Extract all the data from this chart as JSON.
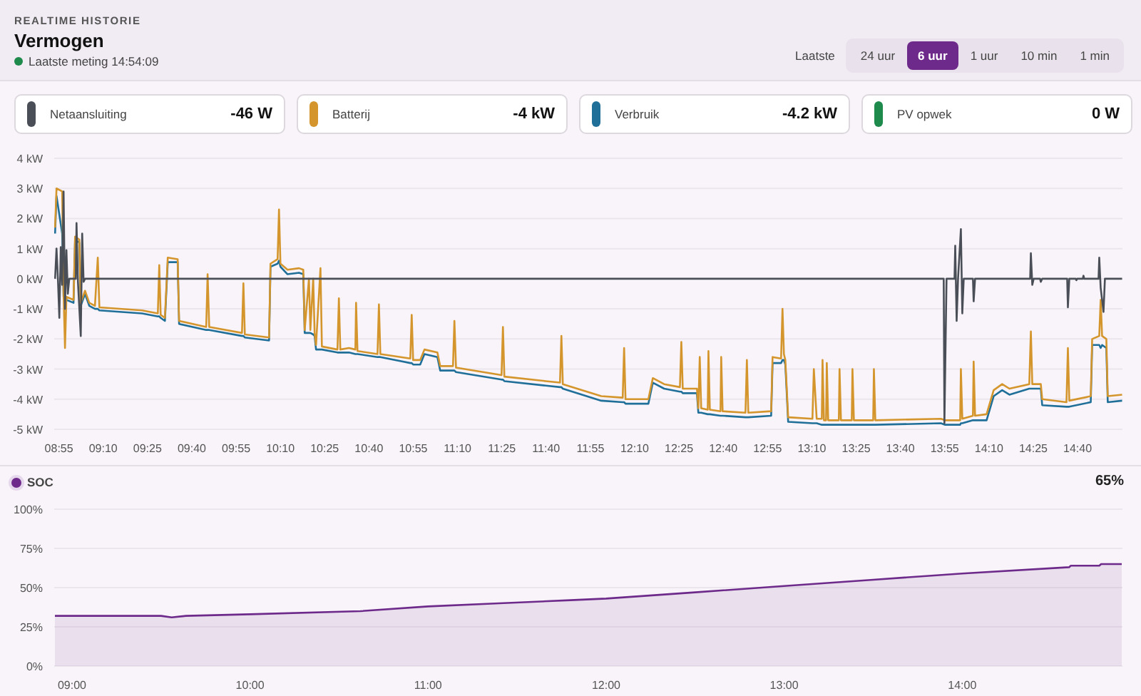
{
  "chart_data": [
    {
      "type": "line",
      "title": "Vermogen",
      "subtitle": "Laatste meting 14:54:09",
      "annotations": [
        "REALTIME HISTORIE",
        "Laatste",
        "24 uur",
        "6 uur",
        "1 uur",
        "10 min",
        "1 min",
        "-46 W",
        "-4 kW",
        "-4.2 kW",
        "0 W"
      ],
      "legend": "top",
      "grid": "y",
      "marker": "none",
      "xlim": [
        8.89,
        14.92
      ],
      "xticks": [
        {
          "value": 8.9167,
          "label": "08:55"
        },
        {
          "value": 9.1667,
          "label": "09:10"
        },
        {
          "value": 9.4167,
          "label": "09:25"
        },
        {
          "value": 9.6667,
          "label": "09:40"
        },
        {
          "value": 9.9167,
          "label": "09:55"
        },
        {
          "value": 10.1667,
          "label": "10:10"
        },
        {
          "value": 10.4167,
          "label": "10:25"
        },
        {
          "value": 10.6667,
          "label": "10:40"
        },
        {
          "value": 10.9167,
          "label": "10:55"
        },
        {
          "value": 11.1667,
          "label": "11:10"
        },
        {
          "value": 11.4167,
          "label": "11:25"
        },
        {
          "value": 11.6667,
          "label": "11:40"
        },
        {
          "value": 11.9167,
          "label": "11:55"
        },
        {
          "value": 12.1667,
          "label": "12:10"
        },
        {
          "value": 12.4167,
          "label": "12:25"
        },
        {
          "value": 12.6667,
          "label": "12:40"
        },
        {
          "value": 12.9167,
          "label": "12:55"
        },
        {
          "value": 13.1667,
          "label": "13:10"
        },
        {
          "value": 13.4167,
          "label": "13:25"
        },
        {
          "value": 13.6667,
          "label": "13:40"
        },
        {
          "value": 13.9167,
          "label": "13:55"
        },
        {
          "value": 14.1667,
          "label": "14:10"
        },
        {
          "value": 14.4167,
          "label": "14:25"
        },
        {
          "value": 14.6667,
          "label": "14:40"
        }
      ],
      "ylim": [
        -5,
        4
      ],
      "yticks": [
        {
          "value": 4,
          "label": "4 kW"
        },
        {
          "value": 3,
          "label": "3 kW"
        },
        {
          "value": 2,
          "label": "2 kW"
        },
        {
          "value": 1,
          "label": "1 kW"
        },
        {
          "value": 0,
          "label": "0 kW"
        },
        {
          "value": -1,
          "label": "-1 kW"
        },
        {
          "value": -2,
          "label": "-2 kW"
        },
        {
          "value": -3,
          "label": "-3 kW"
        },
        {
          "value": -4,
          "label": "-4 kW"
        },
        {
          "value": -5,
          "label": "-5 kW"
        }
      ],
      "series": [
        {
          "name": "Netaansluiting",
          "color": "#4a4f57",
          "x": [
            8.895,
            8.903,
            8.911,
            8.919,
            8.927,
            8.935,
            8.943,
            8.951,
            8.959,
            8.967,
            8.975,
            9.012,
            9.016,
            9.024,
            9.04,
            9.048,
            9.056,
            9.064,
            13.911,
            13.915,
            13.927,
            13.972,
            13.976,
            13.984,
            13.992,
            14.008,
            14.016,
            14.024,
            14.076,
            14.08,
            14.088,
            14.399,
            14.403,
            14.411,
            14.419,
            14.455,
            14.459,
            14.467,
            14.608,
            14.612,
            14.62,
            14.656,
            14.66,
            14.664,
            14.696,
            14.7,
            14.704,
            14.785,
            14.789,
            14.797,
            14.813,
            14.821,
            14.918
          ],
          "values": [
            0,
            1.0,
            0,
            -1.3,
            1.05,
            -0.2,
            2.9,
            -1.0,
            0.95,
            -0.5,
            0,
            0,
            1.85,
            -0.1,
            -1.9,
            1.5,
            -0.1,
            0,
            0,
            -4.8,
            0,
            0,
            1.1,
            -1.4,
            0,
            1.65,
            -1.15,
            0,
            0,
            -0.75,
            0,
            0,
            0.85,
            -0.2,
            0,
            0,
            -0.1,
            0,
            0,
            -0.95,
            0,
            0,
            -0.05,
            0,
            0,
            0.1,
            0,
            0,
            0.7,
            -0.3,
            -1.1,
            0,
            0
          ]
        },
        {
          "name": "Batterij",
          "color": "#d4962c",
          "x": [
            8.895,
            8.903,
            8.935,
            8.943,
            8.951,
            8.959,
            8.999,
            9.008,
            9.032,
            9.04,
            9.064,
            9.088,
            9.12,
            9.136,
            9.145,
            9.386,
            9.475,
            9.483,
            9.491,
            9.515,
            9.531,
            9.587,
            9.595,
            9.748,
            9.756,
            9.765,
            9.95,
            9.958,
            9.966,
            10.103,
            10.111,
            10.151,
            10.159,
            10.167,
            10.207,
            10.272,
            10.296,
            10.304,
            10.328,
            10.336,
            10.352,
            10.36,
            10.368,
            10.393,
            10.401,
            10.489,
            10.497,
            10.505,
            10.554,
            10.59,
            10.594,
            10.602,
            10.715,
            10.723,
            10.731,
            10.9,
            10.908,
            10.916,
            10.956,
            10.98,
            11.053,
            11.069,
            11.141,
            11.149,
            11.158,
            11.415,
            11.423,
            11.431,
            11.665,
            11.745,
            11.753,
            11.761,
            11.978,
            12.099,
            12.107,
            12.115,
            12.244,
            12.269,
            12.333,
            12.422,
            12.43,
            12.438,
            12.518,
            12.526,
            12.534,
            12.542,
            12.579,
            12.583,
            12.591,
            12.651,
            12.655,
            12.663,
            12.792,
            12.8,
            12.808,
            12.937,
            12.945,
            12.993,
            13.001,
            13.009,
            13.017,
            13.033,
            13.17,
            13.178,
            13.194,
            13.223,
            13.227,
            13.235,
            13.247,
            13.251,
            13.259,
            13.319,
            13.323,
            13.331,
            13.392,
            13.396,
            13.404,
            13.513,
            13.517,
            13.525,
            13.895,
            13.919,
            14.004,
            14.008,
            14.016,
            14.076,
            14.08,
            14.088,
            14.153,
            14.193,
            14.241,
            14.282,
            14.394,
            14.403,
            14.411,
            14.459,
            14.467,
            14.604,
            14.612,
            14.62,
            14.741,
            14.749,
            14.789,
            14.797,
            14.805,
            14.829,
            14.837,
            14.918
          ],
          "values": [
            1.7,
            3.0,
            2.9,
            -0.5,
            -2.3,
            -0.6,
            -0.7,
            1.4,
            1.3,
            -0.8,
            -0.4,
            -0.8,
            -0.9,
            0.7,
            -0.95,
            -1.05,
            -1.15,
            0.45,
            -1.2,
            -1.3,
            0.7,
            0.65,
            -1.4,
            -1.6,
            0.15,
            -1.6,
            -1.8,
            -0.15,
            -1.85,
            -1.95,
            0.5,
            0.65,
            2.3,
            0.5,
            0.3,
            0.35,
            0.3,
            -1.7,
            0,
            -1.7,
            0,
            -1.8,
            -2.2,
            0.35,
            -2.25,
            -2.35,
            -0.65,
            -2.35,
            -2.3,
            -2.35,
            -0.8,
            -2.4,
            -2.5,
            -0.85,
            -2.5,
            -2.65,
            -1.2,
            -2.7,
            -2.7,
            -2.35,
            -2.45,
            -2.9,
            -2.9,
            -1.4,
            -2.95,
            -3.2,
            -1.6,
            -3.25,
            -3.4,
            -3.45,
            -1.9,
            -3.5,
            -3.9,
            -3.95,
            -2.3,
            -4.0,
            -4.0,
            -3.3,
            -3.5,
            -3.6,
            -2.1,
            -3.65,
            -3.65,
            -4.3,
            -2.6,
            -4.3,
            -4.35,
            -2.4,
            -4.35,
            -4.4,
            -2.6,
            -4.4,
            -4.45,
            -2.7,
            -4.45,
            -4.4,
            -2.6,
            -2.65,
            -1.0,
            -2.5,
            -2.7,
            -4.6,
            -4.65,
            -3.0,
            -4.65,
            -4.65,
            -2.7,
            -4.7,
            -4.7,
            -2.8,
            -4.7,
            -4.7,
            -3.0,
            -4.7,
            -4.7,
            -3.0,
            -4.7,
            -4.7,
            -3.0,
            -4.7,
            -4.65,
            -4.7,
            -4.7,
            -3.0,
            -4.65,
            -4.55,
            -2.75,
            -4.55,
            -4.5,
            -3.7,
            -3.5,
            -3.65,
            -3.5,
            -1.75,
            -3.5,
            -3.5,
            -4.0,
            -4.1,
            -2.3,
            -4.05,
            -3.9,
            -2.0,
            -1.9,
            -0.7,
            -1.9,
            -2.0,
            -3.9,
            -3.85
          ]
        },
        {
          "name": "Verbruik",
          "color": "#1f6f99",
          "x": [
            8.895,
            8.903,
            8.935,
            8.943,
            8.951,
            8.959,
            8.999,
            9.008,
            9.032,
            9.04,
            9.064,
            9.088,
            9.12,
            9.136,
            9.145,
            9.386,
            9.475,
            9.483,
            9.491,
            9.515,
            9.531,
            9.587,
            9.595,
            9.748,
            9.756,
            9.765,
            9.95,
            9.958,
            9.966,
            10.103,
            10.111,
            10.151,
            10.159,
            10.167,
            10.207,
            10.272,
            10.296,
            10.304,
            10.328,
            10.336,
            10.352,
            10.36,
            10.368,
            10.393,
            10.401,
            10.489,
            10.497,
            10.505,
            10.554,
            10.59,
            10.594,
            10.602,
            10.715,
            10.723,
            10.731,
            10.9,
            10.908,
            10.916,
            10.956,
            10.98,
            11.053,
            11.069,
            11.141,
            11.149,
            11.158,
            11.415,
            11.423,
            11.431,
            11.665,
            11.745,
            11.753,
            11.761,
            11.978,
            12.099,
            12.107,
            12.115,
            12.244,
            12.269,
            12.333,
            12.422,
            12.43,
            12.438,
            12.518,
            12.526,
            12.534,
            12.542,
            12.579,
            12.583,
            12.591,
            12.651,
            12.655,
            12.663,
            12.792,
            12.8,
            12.808,
            12.937,
            12.945,
            12.993,
            13.001,
            13.009,
            13.017,
            13.033,
            13.17,
            13.178,
            13.194,
            13.223,
            13.227,
            13.235,
            13.247,
            13.251,
            13.259,
            13.319,
            13.323,
            13.331,
            13.392,
            13.396,
            13.404,
            13.513,
            13.517,
            13.525,
            13.895,
            13.919,
            14.004,
            14.008,
            14.016,
            14.076,
            14.08,
            14.088,
            14.153,
            14.193,
            14.241,
            14.282,
            14.394,
            14.403,
            14.411,
            14.459,
            14.467,
            14.604,
            14.612,
            14.62,
            14.741,
            14.749,
            14.789,
            14.797,
            14.805,
            14.829,
            14.837,
            14.918
          ],
          "values": [
            1.5,
            2.75,
            1.5,
            -0.6,
            -0.7,
            -0.7,
            -0.8,
            1.3,
            1.2,
            -0.9,
            -0.5,
            -0.9,
            -1.0,
            -1.0,
            -1.05,
            -1.15,
            -1.25,
            -1.25,
            -1.3,
            -1.4,
            0.55,
            0.55,
            -1.5,
            -1.7,
            -1.7,
            -1.7,
            -1.9,
            -1.9,
            -1.95,
            -2.05,
            0.4,
            0.5,
            0.6,
            0.4,
            0.15,
            0.2,
            0.15,
            -1.8,
            -1.8,
            -1.8,
            -1.85,
            -1.9,
            -2.35,
            -2.35,
            -2.35,
            -2.45,
            -2.45,
            -2.45,
            -2.45,
            -2.5,
            -2.5,
            -2.5,
            -2.6,
            -2.6,
            -2.6,
            -2.8,
            -2.8,
            -2.85,
            -2.85,
            -2.5,
            -2.6,
            -3.05,
            -3.05,
            -3.05,
            -3.1,
            -3.35,
            -3.35,
            -3.4,
            -3.55,
            -3.6,
            -3.6,
            -3.65,
            -4.05,
            -4.1,
            -4.1,
            -4.15,
            -4.15,
            -3.45,
            -3.65,
            -3.75,
            -3.75,
            -3.8,
            -3.8,
            -4.45,
            -4.45,
            -4.45,
            -4.5,
            -4.5,
            -4.5,
            -4.55,
            -4.55,
            -4.55,
            -4.6,
            -4.6,
            -4.6,
            -4.55,
            -2.8,
            -2.8,
            -2.7,
            -2.7,
            -2.85,
            -4.75,
            -4.8,
            -4.8,
            -4.8,
            -4.85,
            -4.85,
            -4.85,
            -4.85,
            -4.85,
            -4.85,
            -4.85,
            -4.85,
            -4.85,
            -4.85,
            -4.85,
            -4.85,
            -4.85,
            -4.85,
            -4.85,
            -4.8,
            -4.85,
            -4.85,
            -4.8,
            -4.8,
            -4.7,
            -4.7,
            -4.7,
            -4.7,
            -3.9,
            -3.7,
            -3.85,
            -3.65,
            -3.65,
            -3.65,
            -3.65,
            -4.2,
            -4.25,
            -4.25,
            -4.25,
            -4.1,
            -2.2,
            -2.2,
            -2.3,
            -2.2,
            -2.3,
            -4.1,
            -4.05
          ]
        },
        {
          "name": "PV opwek",
          "color": "#1e8a4c"
        }
      ]
    },
    {
      "type": "area",
      "annotations": [
        "65%"
      ],
      "legend": "top left",
      "grid": "y",
      "marker": "none",
      "xlim": [
        8.9,
        14.9
      ],
      "xticks": [
        {
          "value": 9,
          "label": "09:00"
        },
        {
          "value": 10,
          "label": "10:00"
        },
        {
          "value": 11,
          "label": "11:00"
        },
        {
          "value": 12,
          "label": "12:00"
        },
        {
          "value": 13,
          "label": "13:00"
        },
        {
          "value": 14,
          "label": "14:00"
        }
      ],
      "ylim": [
        0,
        100
      ],
      "yticks": [
        {
          "value": 0,
          "label": "0%"
        },
        {
          "value": 25,
          "label": "25%"
        },
        {
          "value": 50,
          "label": "50%"
        },
        {
          "value": 75,
          "label": "75%"
        },
        {
          "value": 100,
          "label": "100%"
        }
      ],
      "series": [
        {
          "name": "SOC",
          "color": "#6d2a8a",
          "x": [
            8.904,
            9.5,
            9.56,
            9.64,
            10.0,
            10.62,
            11.0,
            11.4,
            11.8,
            12.0,
            12.5,
            13.0,
            13.5,
            14.0,
            14.6,
            14.61,
            14.77,
            14.78,
            14.896
          ],
          "values": [
            32,
            32,
            31,
            32,
            33,
            35,
            38,
            40,
            42,
            43,
            47,
            51,
            55,
            59,
            63,
            64,
            64,
            65,
            65
          ]
        }
      ]
    }
  ]
}
